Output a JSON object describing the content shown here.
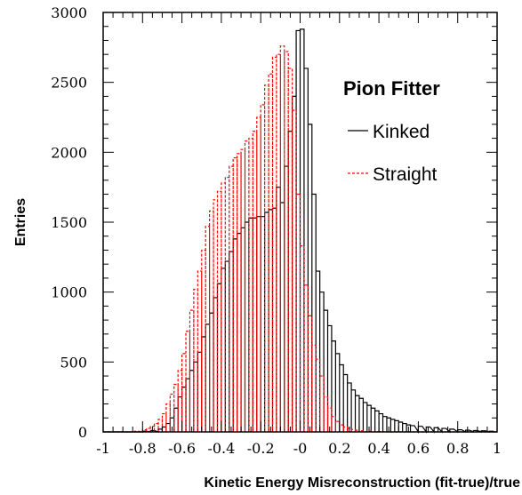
{
  "chart_data": {
    "type": "line",
    "xlabel": "Kinetic Energy Misreconstruction (fit-true)/true",
    "ylabel": "Entries",
    "xlim": [
      -1,
      1
    ],
    "ylim": [
      0,
      3000
    ],
    "grid": false,
    "legend": {
      "title": "Pion Fitter",
      "placement": "top-right"
    },
    "x_ticks": [
      "-1",
      "-0.8",
      "-0.6",
      "-0.4",
      "-0.2",
      "-0",
      "0.2",
      "0.4",
      "0.6",
      "0.8",
      "1"
    ],
    "y_ticks": [
      "0",
      "500",
      "1000",
      "1500",
      "2000",
      "2500",
      "3000"
    ],
    "bin_width": 0.02,
    "series": [
      {
        "name": "Kinked",
        "color": "#000000",
        "style": "solid",
        "x": [
          -0.8,
          -0.76,
          -0.72,
          -0.7,
          -0.68,
          -0.66,
          -0.64,
          -0.62,
          -0.6,
          -0.58,
          -0.56,
          -0.54,
          -0.52,
          -0.5,
          -0.48,
          -0.46,
          -0.44,
          -0.42,
          -0.4,
          -0.38,
          -0.36,
          -0.34,
          -0.32,
          -0.3,
          -0.28,
          -0.26,
          -0.24,
          -0.22,
          -0.2,
          -0.18,
          -0.16,
          -0.14,
          -0.12,
          -0.1,
          -0.08,
          -0.06,
          -0.04,
          -0.02,
          0.0,
          0.02,
          0.04,
          0.06,
          0.08,
          0.1,
          0.12,
          0.14,
          0.16,
          0.18,
          0.2,
          0.22,
          0.24,
          0.26,
          0.28,
          0.3,
          0.32,
          0.34,
          0.36,
          0.38,
          0.4,
          0.42,
          0.44,
          0.46,
          0.48,
          0.5,
          0.52,
          0.54,
          0.56,
          0.6,
          0.64,
          0.68,
          0.72,
          0.76,
          0.8,
          0.84,
          0.88,
          0.92,
          0.96
        ],
        "values": [
          5,
          10,
          20,
          35,
          60,
          100,
          170,
          250,
          320,
          380,
          440,
          500,
          570,
          680,
          770,
          850,
          960,
          1060,
          1170,
          1220,
          1290,
          1380,
          1420,
          1460,
          1500,
          1530,
          1530,
          1540,
          1540,
          1570,
          1590,
          1600,
          1750,
          1640,
          1900,
          2150,
          2400,
          2870,
          2880,
          2600,
          2200,
          1700,
          1150,
          1000,
          870,
          760,
          650,
          560,
          480,
          410,
          350,
          300,
          260,
          240,
          210,
          190,
          170,
          150,
          130,
          110,
          100,
          90,
          80,
          70,
          60,
          50,
          45,
          40,
          35,
          30,
          25,
          20,
          15,
          12,
          10,
          8,
          5
        ]
      },
      {
        "name": "Straight",
        "color": "#ff0000",
        "style": "dashed",
        "x": [
          -0.84,
          -0.8,
          -0.78,
          -0.76,
          -0.74,
          -0.72,
          -0.7,
          -0.68,
          -0.66,
          -0.64,
          -0.62,
          -0.6,
          -0.58,
          -0.56,
          -0.54,
          -0.52,
          -0.5,
          -0.48,
          -0.46,
          -0.44,
          -0.42,
          -0.4,
          -0.38,
          -0.36,
          -0.34,
          -0.32,
          -0.3,
          -0.28,
          -0.26,
          -0.24,
          -0.22,
          -0.2,
          -0.18,
          -0.16,
          -0.14,
          -0.12,
          -0.1,
          -0.08,
          -0.06,
          -0.04,
          -0.02,
          0.0,
          0.02,
          0.04,
          0.06,
          0.08,
          0.1,
          0.12,
          0.14,
          0.16,
          0.18,
          0.2,
          0.22,
          0.24,
          0.26,
          0.28,
          0.3,
          0.34,
          0.38,
          0.42
        ],
        "values": [
          5,
          15,
          25,
          40,
          60,
          90,
          130,
          200,
          270,
          340,
          440,
          560,
          720,
          870,
          1020,
          1150,
          1300,
          1470,
          1580,
          1660,
          1720,
          1780,
          1820,
          1900,
          1960,
          1990,
          2020,
          2080,
          2100,
          2150,
          2250,
          2340,
          2480,
          2560,
          2680,
          2700,
          2760,
          2720,
          2600,
          2300,
          1700,
          1330,
          1050,
          830,
          620,
          520,
          400,
          250,
          170,
          110,
          75,
          50,
          35,
          25,
          18,
          12,
          8,
          5,
          3,
          2
        ]
      }
    ]
  }
}
